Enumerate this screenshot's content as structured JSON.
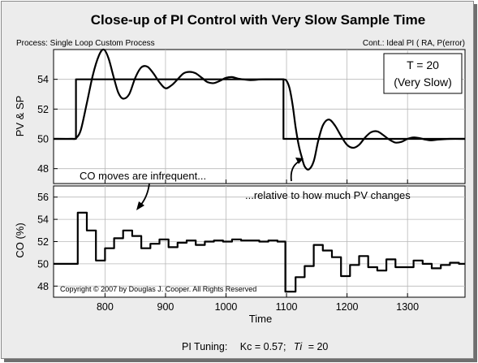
{
  "chart_data": {
    "title": "Close-up of PI Control with Very Slow Sample Time",
    "process_label": "Process: Single Loop Custom Process",
    "controller_label": "Cont.: Ideal PI ( RA, P(error)",
    "xlabel": "Time",
    "xlim": [
      715,
      1395
    ],
    "grid": true,
    "footer": {
      "prefix": "PI Tuning:",
      "kc": "Kc = 0.57;",
      "ti_symbol": "Ti",
      "ti_value": "= 20"
    },
    "copyright": "Copyright © 2007 by Douglas J. Cooper.  All Rights Reserved",
    "panels": [
      {
        "type": "line",
        "ylabel": "PV & SP",
        "ylim": [
          47,
          56
        ],
        "yticks": [
          48,
          50,
          52,
          54
        ],
        "info_box": [
          "T = 20",
          "(Very Slow)"
        ],
        "series": [
          {
            "name": "SP",
            "step": true,
            "x": [
              715,
              752,
              752,
              1095,
              1095,
              1395
            ],
            "y": [
              50,
              50,
              54,
              54,
              50,
              50
            ]
          },
          {
            "name": "PV",
            "smooth": true,
            "x": [
              715,
              745,
              752,
              760,
              770,
              780,
              790,
              798,
              806,
              814,
              822,
              830,
              840,
              850,
              860,
              870,
              880,
              890,
              900,
              910,
              920,
              930,
              940,
              950,
              960,
              970,
              980,
              990,
              1000,
              1010,
              1020,
              1040,
              1060,
              1080,
              1095,
              1100,
              1105,
              1110,
              1115,
              1120,
              1125,
              1130,
              1137,
              1145,
              1152,
              1160,
              1170,
              1180,
              1190,
              1200,
              1210,
              1220,
              1230,
              1240,
              1250,
              1260,
              1270,
              1280,
              1290,
              1300,
              1310,
              1320,
              1330,
              1340,
              1350,
              1370,
              1395
            ],
            "y": [
              50,
              50,
              50.05,
              50.6,
              52.4,
              54.3,
              55.6,
              56.0,
              55.4,
              54.2,
              53.1,
              52.7,
              53.0,
              54.1,
              54.8,
              54.85,
              54.4,
              53.8,
              53.4,
              53.6,
              54.0,
              54.4,
              54.5,
              54.4,
              54.1,
              53.8,
              53.75,
              53.9,
              54.1,
              54.15,
              54.05,
              53.95,
              54.0,
              54.0,
              54.0,
              53.9,
              53.4,
              52.3,
              50.8,
              49.6,
              48.8,
              48.15,
              47.95,
              48.5,
              49.8,
              50.9,
              51.3,
              50.9,
              50.2,
              49.6,
              49.4,
              49.6,
              50.1,
              50.45,
              50.5,
              50.25,
              49.95,
              49.75,
              49.8,
              50.0,
              50.1,
              50.05,
              49.95,
              49.9,
              49.95,
              50.0,
              50.0
            ]
          }
        ]
      },
      {
        "type": "line",
        "ylabel": "CO (%)",
        "ylim": [
          47,
          57
        ],
        "yticks": [
          48,
          50,
          52,
          54,
          56
        ],
        "series": [
          {
            "name": "CO",
            "step": true,
            "x": [
              715,
              755,
              770,
              785,
              800,
              815,
              830,
              845,
              860,
              875,
              890,
              905,
              920,
              935,
              950,
              965,
              980,
              995,
              1010,
              1025,
              1040,
              1055,
              1070,
              1085,
              1098,
              1115,
              1130,
              1145,
              1160,
              1175,
              1190,
              1205,
              1220,
              1235,
              1250,
              1265,
              1280,
              1295,
              1310,
              1325,
              1340,
              1355,
              1370,
              1385
            ],
            "y": [
              50.0,
              54.6,
              53.0,
              50.3,
              51.4,
              52.3,
              53.0,
              52.5,
              51.4,
              51.8,
              52.2,
              51.5,
              51.9,
              52.1,
              51.7,
              52.0,
              52.1,
              52.0,
              52.2,
              52.1,
              52.1,
              52.0,
              52.1,
              52.0,
              47.5,
              48.8,
              49.8,
              51.7,
              51.2,
              50.6,
              48.9,
              49.9,
              50.7,
              49.7,
              49.4,
              50.4,
              49.7,
              49.7,
              50.3,
              50.0,
              49.6,
              49.9,
              50.1,
              50.0
            ]
          }
        ]
      }
    ],
    "xticks": [
      800,
      900,
      1000,
      1100,
      1200,
      1300
    ],
    "annotations": [
      {
        "text": "CO moves are infrequent..."
      },
      {
        "text": "...relative to how much PV changes"
      }
    ]
  }
}
